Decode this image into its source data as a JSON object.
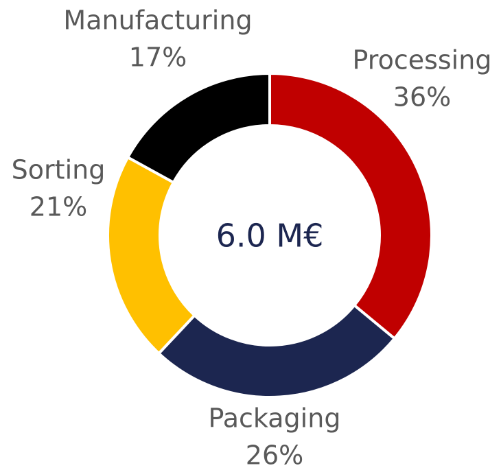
{
  "chart_data": {
    "type": "pie",
    "categories": [
      "Processing",
      "Packaging",
      "Sorting",
      "Manufacturing"
    ],
    "values": [
      36,
      26,
      21,
      17
    ],
    "value_labels": [
      "36%",
      "26%",
      "21%",
      "17%"
    ],
    "colors": [
      "#c00000",
      "#1c2650",
      "#ffc000",
      "#000000"
    ],
    "center_label": "6.0 M€"
  }
}
